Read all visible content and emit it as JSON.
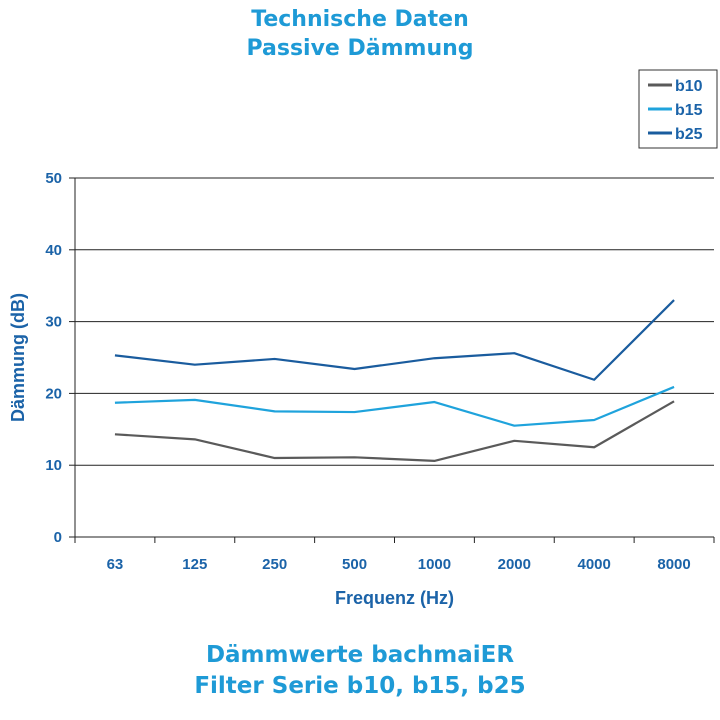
{
  "header": {
    "title_line1": "Technische Daten",
    "title_line2": "Passive Dämmung"
  },
  "footer": {
    "line1": "Dämmwerte bachmaiER",
    "line2": "Filter Serie b10, b15, b25"
  },
  "chart_data": {
    "type": "line",
    "xlabel": "Frequenz (Hz)",
    "ylabel": "Dämmung (dB)",
    "categories": [
      "63",
      "125",
      "250",
      "500",
      "1000",
      "2000",
      "4000",
      "8000"
    ],
    "ylim": [
      0,
      50
    ],
    "yticks": [
      0,
      10,
      20,
      30,
      40,
      50
    ],
    "grid": "horizontal",
    "legend_position": "top-right",
    "series": [
      {
        "name": "b10",
        "color": "#5a5a5a",
        "values": [
          14.3,
          13.6,
          11.0,
          11.1,
          10.6,
          13.4,
          12.5,
          18.9
        ]
      },
      {
        "name": "b15",
        "color": "#1fa3dc",
        "values": [
          18.7,
          19.1,
          17.5,
          17.4,
          18.8,
          15.5,
          16.3,
          20.9
        ]
      },
      {
        "name": "b25",
        "color": "#1a5c9e",
        "values": [
          25.3,
          24.0,
          24.8,
          23.4,
          24.9,
          25.6,
          21.9,
          33.0
        ]
      }
    ]
  }
}
